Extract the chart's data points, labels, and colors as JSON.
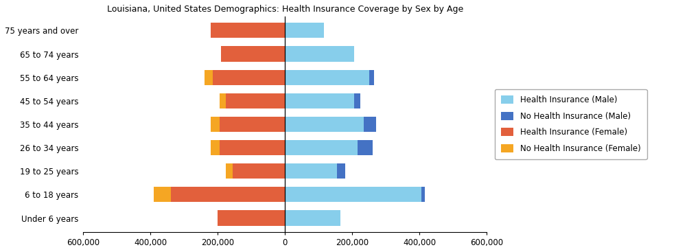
{
  "title": "Louisiana, United States Demographics: Health Insurance Coverage by Sex by Age",
  "age_groups": [
    "Under 6 years",
    "6 to 18 years",
    "19 to 25 years",
    "26 to 34 years",
    "35 to 44 years",
    "45 to 54 years",
    "55 to 64 years",
    "65 to 74 years",
    "75 years and over"
  ],
  "health_insurance_male": [
    165000,
    405000,
    155000,
    215000,
    235000,
    205000,
    250000,
    205000,
    115000
  ],
  "no_health_insurance_male": [
    0,
    10000,
    25000,
    45000,
    35000,
    20000,
    15000,
    0,
    0
  ],
  "health_insurance_female": [
    200000,
    340000,
    155000,
    195000,
    195000,
    175000,
    215000,
    190000,
    220000
  ],
  "no_health_insurance_female": [
    0,
    50000,
    20000,
    25000,
    25000,
    20000,
    25000,
    0,
    0
  ],
  "colors": {
    "health_insurance_male": "#87CEEB",
    "no_health_insurance_male": "#4472C4",
    "health_insurance_female": "#E2603C",
    "no_health_insurance_female": "#F5A623"
  },
  "xlim": [
    -600000,
    600000
  ],
  "xticks": [
    -600000,
    -400000,
    -200000,
    0,
    200000,
    400000,
    600000
  ],
  "xtick_labels": [
    "600,000",
    "400,000",
    "200,000",
    "0",
    "200,000",
    "400,000",
    "600,000"
  ],
  "legend_labels": [
    "Health Insurance (Male)",
    "No Health Insurance (Male)",
    "Health Insurance (Female)",
    "No Health Insurance (Female)"
  ],
  "background_color": "#ffffff"
}
